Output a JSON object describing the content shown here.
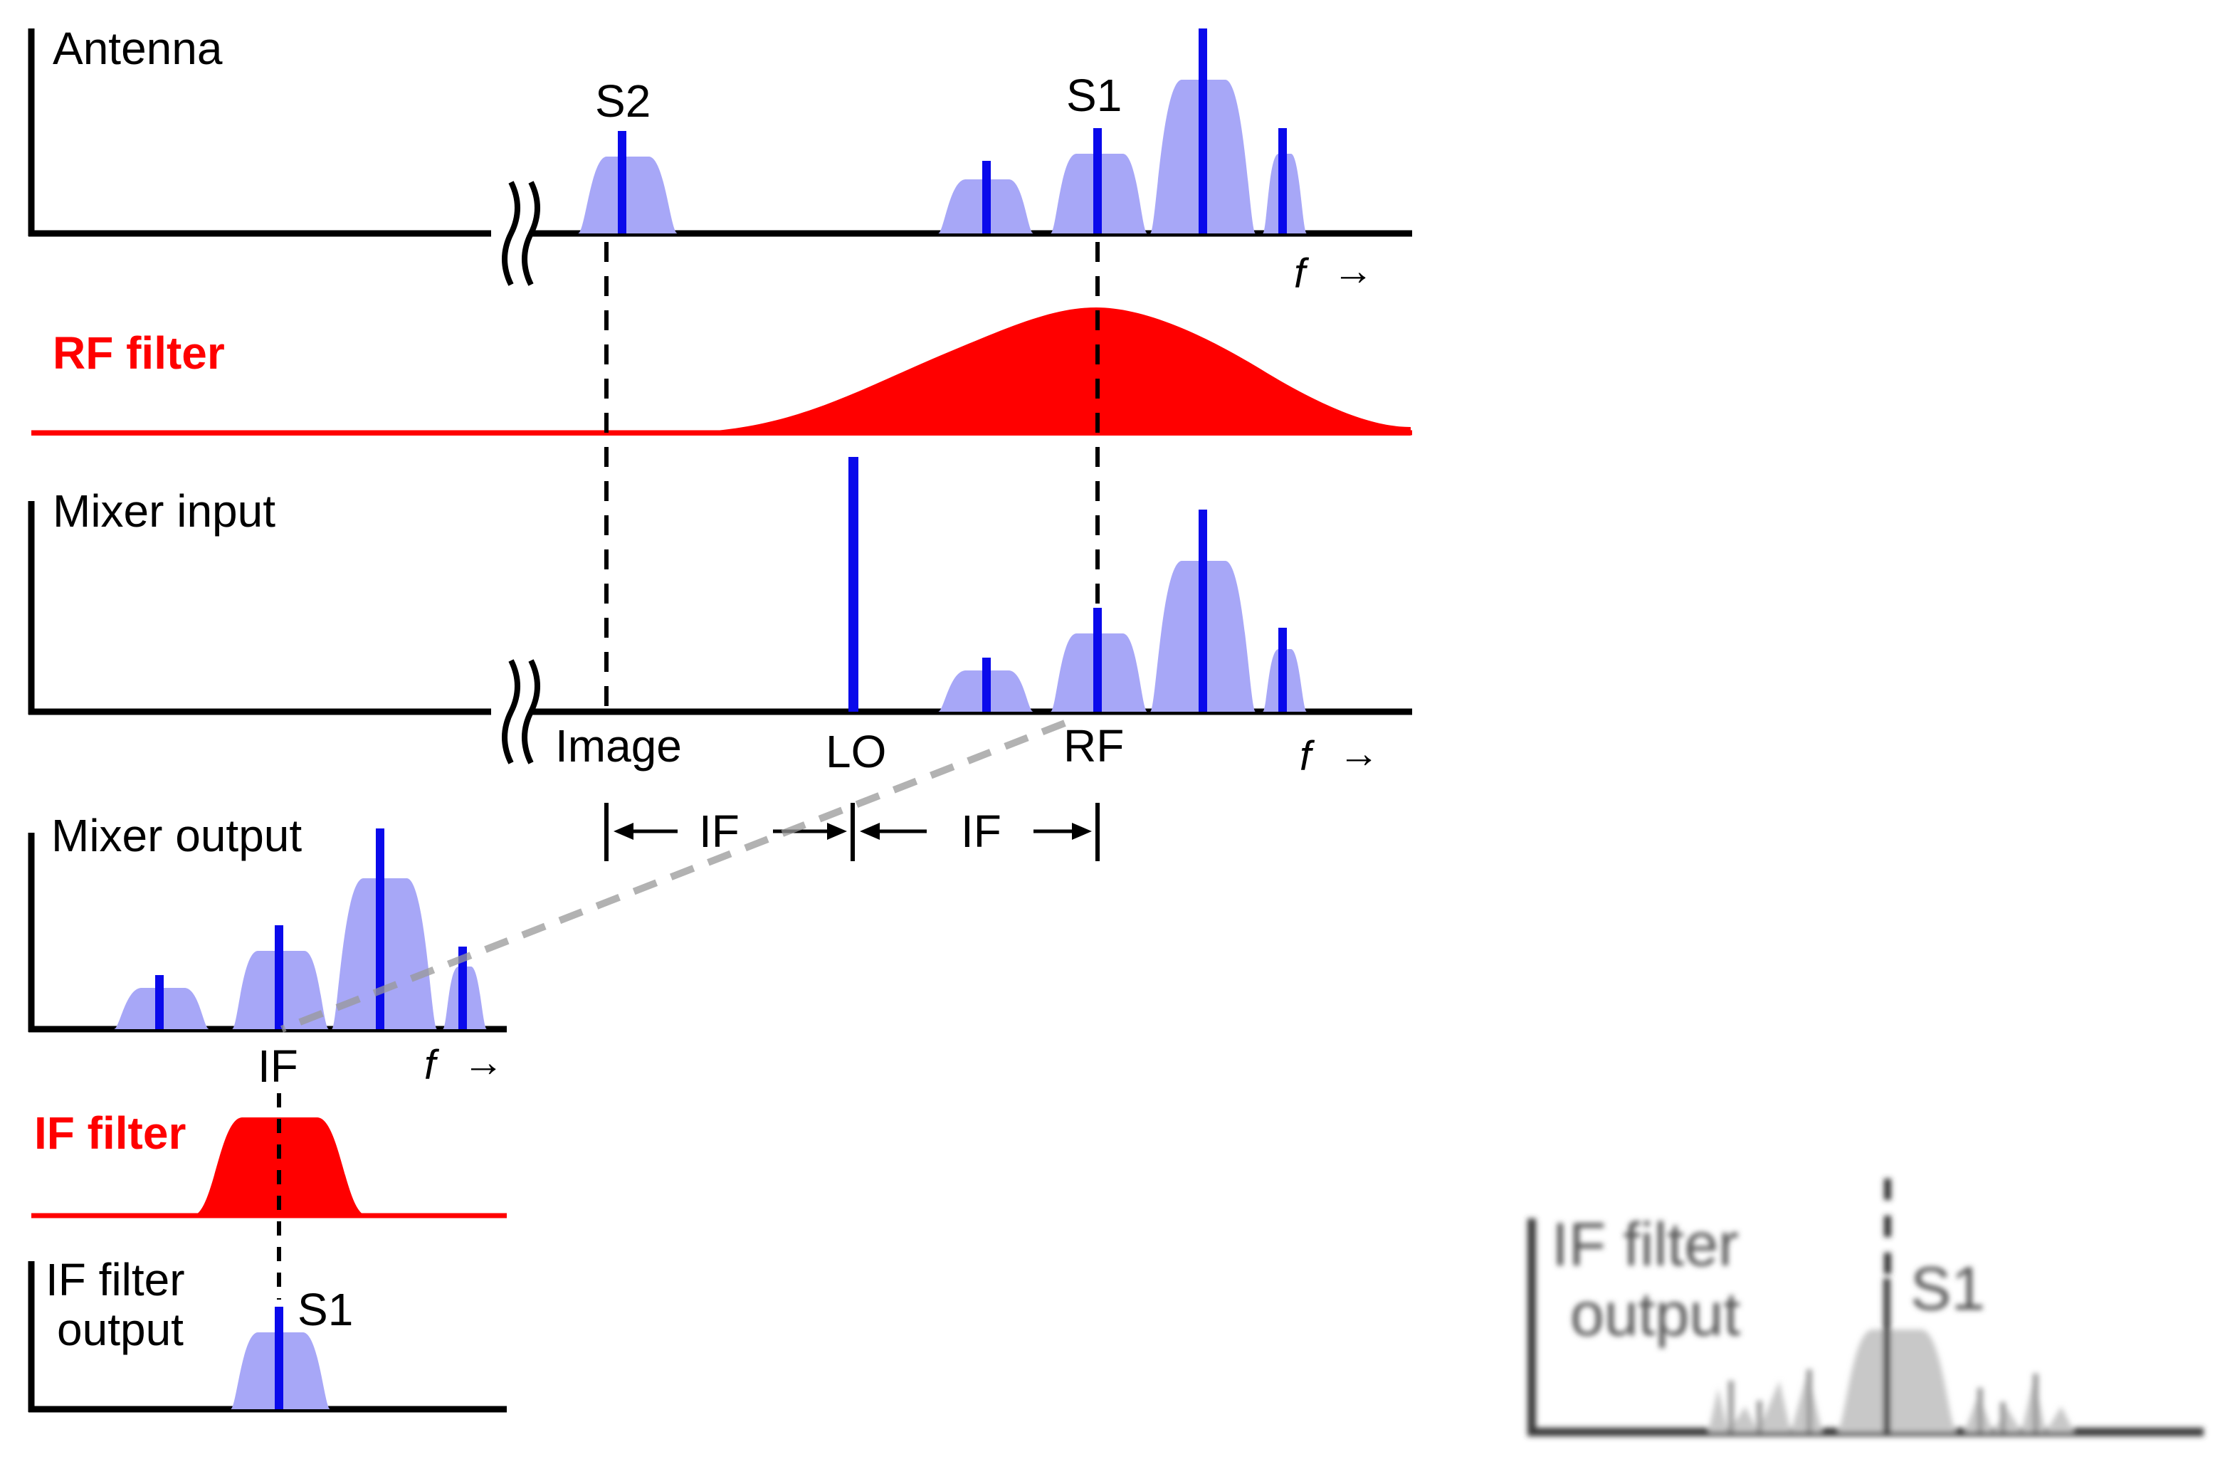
{
  "colors": {
    "signal_fill": "#a7a7f7",
    "signal_line": "#0a0aeb",
    "filter": "#ff0000",
    "axis": "#000000",
    "guide": "#999999",
    "faded": "#b8b8b8"
  },
  "panels": {
    "antenna": "Antenna",
    "rf_filter": "RF filter",
    "mixer_input": "Mixer input",
    "mixer_output": "Mixer output",
    "if_filter": "IF filter",
    "if_filter_output_line1": "IF filter",
    "if_filter_output_line2": "output"
  },
  "signals": {
    "s1": "S1",
    "s2": "S2"
  },
  "frequencies": {
    "image": "Image",
    "lo": "LO",
    "rf": "RF",
    "if": "IF",
    "f_axis": "f",
    "arrow": "→"
  },
  "spacing": {
    "left": "IF",
    "right": "IF"
  },
  "zoom_panel": {
    "label_line1": "IF filter",
    "label_line2": "output",
    "signal": "S1"
  }
}
